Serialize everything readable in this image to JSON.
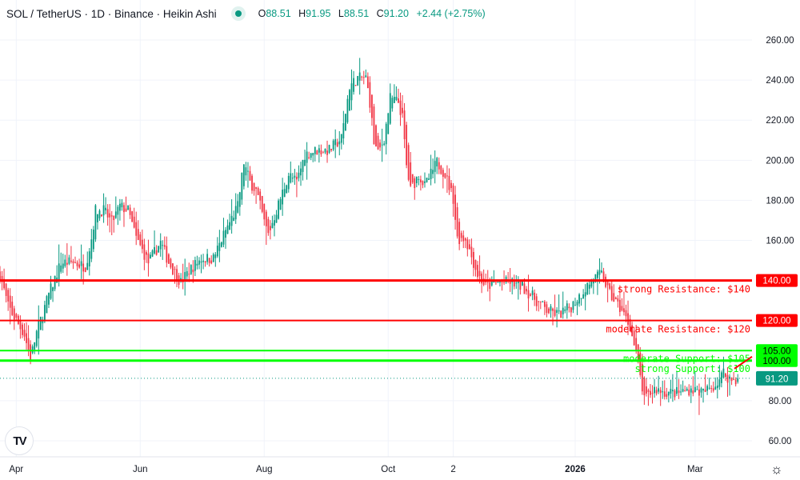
{
  "header": {
    "title": "SOL / TetherUS · 1D · Binance · Heikin Ashi",
    "ohlc": {
      "o_label": "O",
      "o": "88.51",
      "h_label": "H",
      "h": "91.95",
      "l_label": "L",
      "l": "88.51",
      "c_label": "C",
      "c": "91.20",
      "change": "+2.44 (+2.75%)"
    }
  },
  "colors": {
    "up": "#089981",
    "down": "#f23645",
    "resistance": "#ff0000",
    "support": "#00ff00",
    "grid": "#f0f3fa",
    "text": "#131722"
  },
  "icons": {
    "logo": "tradingview-logo",
    "settings": "gear-icon",
    "status": "market-open-dot"
  },
  "chart_data": {
    "type": "candlestick",
    "style": "Heikin Ashi",
    "symbol": "SOL / TetherUS",
    "interval": "1D",
    "ylim": [
      52,
      268
    ],
    "xlim": [
      "2025-03-24",
      "2026-03-29"
    ],
    "grid": true,
    "y_ticks": [
      "260.00",
      "240.00",
      "220.00",
      "200.00",
      "180.00",
      "160.00",
      "80.00",
      "60.00"
    ],
    "y_tick_values": [
      260,
      240,
      220,
      200,
      180,
      160,
      80,
      60
    ],
    "x_ticks": [
      {
        "label": "Apr",
        "date": "2025-04-01"
      },
      {
        "label": "Jun",
        "date": "2025-06-01"
      },
      {
        "label": "Aug",
        "date": "2025-08-01"
      },
      {
        "label": "Oct",
        "date": "2025-10-01"
      },
      {
        "label": "2",
        "date": "2025-11-02"
      },
      {
        "label": "2026",
        "date": "2026-01-01"
      },
      {
        "label": "Mar",
        "date": "2026-03-01"
      }
    ],
    "close_samples": [
      [
        "2025-03-24",
        143
      ],
      [
        "2025-03-28",
        127
      ],
      [
        "2025-04-05",
        113
      ],
      [
        "2025-04-08",
        101
      ],
      [
        "2025-04-11",
        114
      ],
      [
        "2025-04-17",
        133
      ],
      [
        "2025-04-23",
        149
      ],
      [
        "2025-04-29",
        149
      ],
      [
        "2025-05-05",
        147
      ],
      [
        "2025-05-08",
        161
      ],
      [
        "2025-05-10",
        175
      ],
      [
        "2025-05-14",
        175
      ],
      [
        "2025-05-18",
        169
      ],
      [
        "2025-05-22",
        177
      ],
      [
        "2025-05-26",
        175
      ],
      [
        "2025-05-30",
        161
      ],
      [
        "2025-06-05",
        149
      ],
      [
        "2025-06-11",
        159
      ],
      [
        "2025-06-15",
        149
      ],
      [
        "2025-06-21",
        139
      ],
      [
        "2025-06-25",
        145
      ],
      [
        "2025-07-01",
        151
      ],
      [
        "2025-07-07",
        151
      ],
      [
        "2025-07-13",
        165
      ],
      [
        "2025-07-19",
        177
      ],
      [
        "2025-07-22",
        199
      ],
      [
        "2025-07-25",
        189
      ],
      [
        "2025-07-28",
        185
      ],
      [
        "2025-08-01",
        169
      ],
      [
        "2025-08-03",
        163
      ],
      [
        "2025-08-07",
        175
      ],
      [
        "2025-08-13",
        193
      ],
      [
        "2025-08-17",
        189
      ],
      [
        "2025-08-21",
        203
      ],
      [
        "2025-08-27",
        205
      ],
      [
        "2025-09-02",
        205
      ],
      [
        "2025-09-08",
        211
      ],
      [
        "2025-09-12",
        237
      ],
      [
        "2025-09-16",
        241
      ],
      [
        "2025-09-20",
        241
      ],
      [
        "2025-09-22",
        229
      ],
      [
        "2025-09-24",
        209
      ],
      [
        "2025-09-26",
        203
      ],
      [
        "2025-09-29",
        211
      ],
      [
        "2025-10-02",
        231
      ],
      [
        "2025-10-06",
        229
      ],
      [
        "2025-10-08",
        221
      ],
      [
        "2025-10-10",
        197
      ],
      [
        "2025-10-12",
        185
      ],
      [
        "2025-10-16",
        193
      ],
      [
        "2025-10-19",
        187
      ],
      [
        "2025-10-25",
        199
      ],
      [
        "2025-10-29",
        193
      ],
      [
        "2025-11-02",
        181
      ],
      [
        "2025-11-04",
        161
      ],
      [
        "2025-11-08",
        161
      ],
      [
        "2025-11-14",
        143
      ],
      [
        "2025-11-18",
        137
      ],
      [
        "2025-11-24",
        139
      ],
      [
        "2025-11-30",
        139
      ],
      [
        "2025-12-06",
        137
      ],
      [
        "2025-12-12",
        131
      ],
      [
        "2025-12-18",
        125
      ],
      [
        "2025-12-24",
        123
      ],
      [
        "2025-12-30",
        127
      ],
      [
        "2026-01-05",
        135
      ],
      [
        "2026-01-10",
        141
      ],
      [
        "2026-01-14",
        143
      ],
      [
        "2026-01-18",
        133
      ],
      [
        "2026-01-24",
        125
      ],
      [
        "2026-01-28",
        117
      ],
      [
        "2026-02-01",
        98
      ],
      [
        "2026-02-04",
        80
      ],
      [
        "2026-02-09",
        86
      ],
      [
        "2026-02-15",
        84
      ],
      [
        "2026-02-21",
        84
      ],
      [
        "2026-02-27",
        86
      ],
      [
        "2026-03-05",
        84
      ],
      [
        "2026-03-11",
        88
      ],
      [
        "2026-03-15",
        94
      ],
      [
        "2026-03-19",
        90
      ],
      [
        "2026-03-22",
        91.2
      ]
    ],
    "last_price": {
      "value": 91.2,
      "label": "91.20"
    },
    "levels": [
      {
        "value": 140,
        "label": "strong Resistance: $140",
        "axis_label": "140.00",
        "kind": "resistance",
        "weight": "strong"
      },
      {
        "value": 120,
        "label": "moderate Resistance: $120",
        "axis_label": "120.00",
        "kind": "resistance",
        "weight": "moderate"
      },
      {
        "value": 105,
        "label": "moderate Support: $105",
        "axis_label": "105.00",
        "kind": "support",
        "weight": "moderate"
      },
      {
        "value": 100,
        "label": "strong Support: $100",
        "axis_label": "100.00",
        "kind": "support",
        "weight": "strong"
      }
    ]
  }
}
